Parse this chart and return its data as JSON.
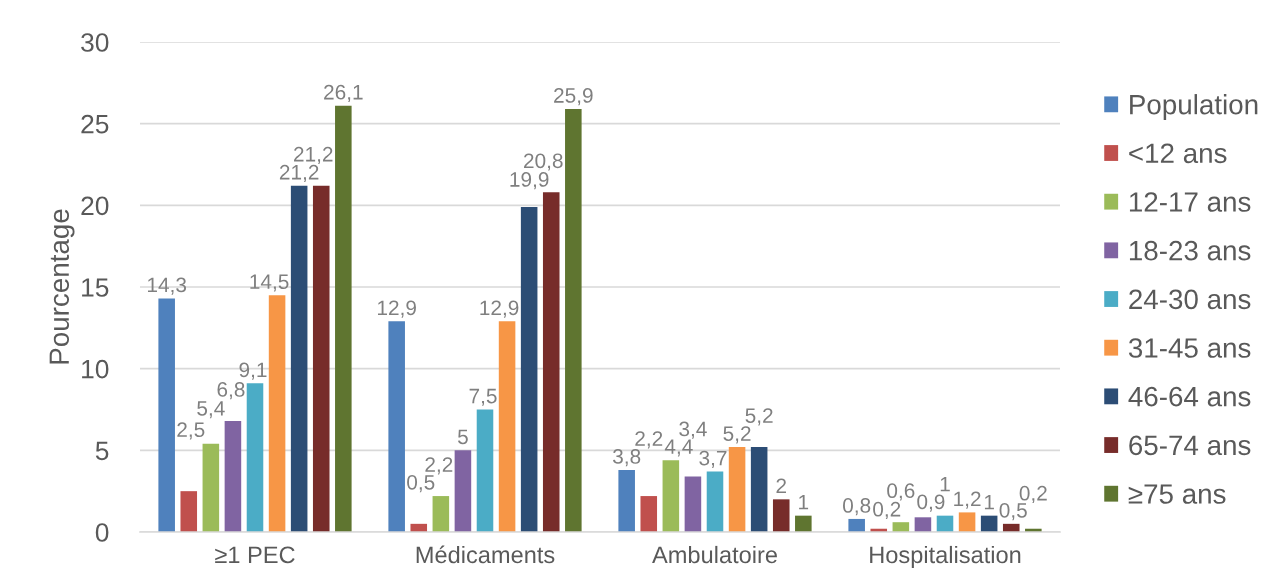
{
  "chart_data": {
    "type": "bar",
    "ylabel": "Pourcentage",
    "categories": [
      "≥1 PEC",
      "Médicaments",
      "Ambulatoire",
      "Hospitalisation"
    ],
    "series": [
      {
        "name": "Population",
        "color": "#4f81bd",
        "values": [
          14.3,
          12.9,
          3.8,
          0.8
        ],
        "value_labels": [
          "14,3",
          "12,9",
          "3,8",
          "0,8"
        ]
      },
      {
        "name": "<12 ans",
        "color": "#c0504d",
        "values": [
          2.5,
          0.5,
          2.2,
          0.2
        ],
        "value_labels": [
          "2,5",
          "0,5",
          "2,2",
          "0,2"
        ]
      },
      {
        "name": "12-17 ans",
        "color": "#9bbb59",
        "values": [
          5.4,
          2.2,
          4.4,
          0.6
        ],
        "value_labels": [
          "5,4",
          "2,2",
          "4,4",
          "0,6"
        ]
      },
      {
        "name": "18-23 ans",
        "color": "#8064a2",
        "values": [
          6.8,
          5,
          3.4,
          0.9
        ],
        "value_labels": [
          "6,8",
          "5",
          "3,4",
          "0,9"
        ]
      },
      {
        "name": "24-30 ans",
        "color": "#4bacc6",
        "values": [
          9.1,
          7.5,
          3.7,
          1
        ],
        "value_labels": [
          "9,1",
          "7,5",
          "3,7",
          "1"
        ]
      },
      {
        "name": "31-45 ans",
        "color": "#f79646",
        "values": [
          14.5,
          12.9,
          5.2,
          1.2
        ],
        "value_labels": [
          "14,5",
          "12,9",
          "5,2",
          "1,2"
        ]
      },
      {
        "name": "46-64 ans",
        "color": "#2c4d75",
        "values": [
          21.2,
          19.9,
          5.2,
          1
        ],
        "value_labels": [
          "21,2",
          "19,9",
          "5,2",
          "1"
        ]
      },
      {
        "name": "65-74 ans",
        "color": "#772c2a",
        "values": [
          21.2,
          20.8,
          2,
          0.5
        ],
        "value_labels": [
          "21,2",
          "20,8",
          "2",
          "0,5"
        ]
      },
      {
        "name": "≥75 ans",
        "color": "#5f7530",
        "values": [
          26.1,
          25.9,
          1,
          0.2
        ],
        "value_labels": [
          "26,1",
          "25,9",
          "1",
          "0,2"
        ]
      }
    ],
    "ylim": [
      0,
      30
    ],
    "yticks": [
      0,
      5,
      10,
      15,
      20,
      25,
      30
    ],
    "grid": "y",
    "legend": "right"
  }
}
